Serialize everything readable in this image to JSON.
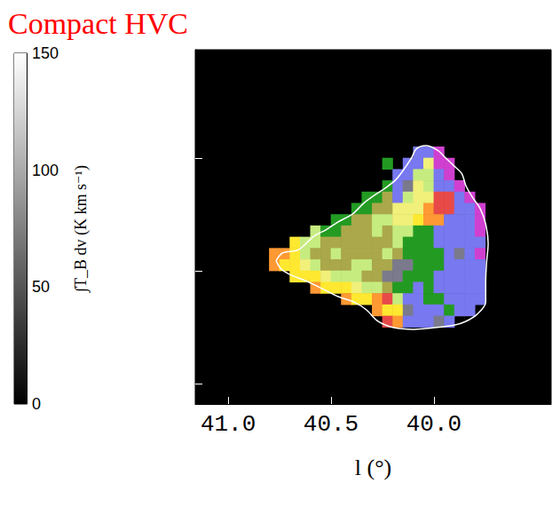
{
  "chart_data": {
    "type": "map",
    "title": "Compact HVC",
    "x_label": "l (°)",
    "xlim": [
      41.16,
      39.43
    ],
    "xticks": [
      {
        "value": 41.0,
        "label": "41.0"
      },
      {
        "value": 40.5,
        "label": "40.5"
      },
      {
        "value": 40.0,
        "label": "40.0"
      }
    ],
    "ylim": [
      -1.09,
      0.48
    ],
    "yticks": [
      -1.0,
      -0.5,
      0.0
    ],
    "tick_labels": "x",
    "palette": [
      "#239b23",
      "#c6ec80",
      "#aaa84a",
      "#ffe830",
      "#ff9933",
      "#e84a48",
      "#7878f0",
      "#d040d0",
      "#7a7a8c",
      "#f0f07a"
    ],
    "cell_l": [
      40.775,
      40.725,
      40.675,
      40.625,
      40.575,
      40.525,
      40.475,
      40.425,
      40.375,
      40.325,
      40.275,
      40.225,
      40.175,
      40.125,
      40.075,
      40.025,
      39.975,
      39.925,
      39.875,
      39.825,
      39.775,
      39.725
    ],
    "cell_b": [
      0.025,
      -0.025,
      -0.075,
      -0.125,
      -0.175,
      -0.225,
      -0.275,
      -0.325,
      -0.375,
      -0.425,
      -0.475,
      -0.525,
      -0.575,
      -0.625,
      -0.675,
      -0.725
    ],
    "cells": [
      [
        null,
        null,
        null,
        null,
        null,
        null,
        null,
        null,
        null,
        null,
        null,
        null,
        null,
        null,
        6,
        6,
        7,
        null,
        null,
        null,
        null,
        null
      ],
      [
        null,
        null,
        null,
        null,
        null,
        null,
        null,
        null,
        null,
        null,
        null,
        0,
        null,
        6,
        6,
        9,
        7,
        7,
        null,
        null,
        null,
        null
      ],
      [
        null,
        null,
        null,
        null,
        null,
        null,
        null,
        null,
        null,
        null,
        null,
        null,
        6,
        6,
        1,
        1,
        6,
        7,
        null,
        null,
        null,
        null
      ],
      [
        null,
        null,
        null,
        null,
        null,
        null,
        null,
        null,
        null,
        null,
        null,
        0,
        6,
        8,
        9,
        1,
        6,
        6,
        7,
        null,
        null,
        null
      ],
      [
        null,
        null,
        null,
        null,
        null,
        null,
        null,
        null,
        null,
        0,
        0,
        2,
        6,
        1,
        9,
        9,
        5,
        5,
        6,
        7,
        null,
        null
      ],
      [
        null,
        null,
        null,
        null,
        null,
        null,
        null,
        null,
        0,
        0,
        2,
        2,
        9,
        9,
        9,
        4,
        5,
        5,
        6,
        6,
        7,
        null
      ],
      [
        null,
        null,
        null,
        null,
        null,
        null,
        0,
        0,
        2,
        2,
        1,
        1,
        9,
        9,
        3,
        4,
        4,
        6,
        6,
        6,
        7,
        null
      ],
      [
        null,
        null,
        null,
        null,
        1,
        0,
        0,
        2,
        2,
        2,
        1,
        2,
        1,
        1,
        0,
        0,
        6,
        6,
        6,
        6,
        7,
        null
      ],
      [
        null,
        null,
        3,
        1,
        1,
        2,
        2,
        2,
        2,
        2,
        2,
        2,
        1,
        0,
        0,
        0,
        6,
        6,
        6,
        6,
        6,
        null
      ],
      [
        4,
        4,
        3,
        1,
        2,
        2,
        1,
        2,
        2,
        2,
        2,
        1,
        2,
        0,
        0,
        0,
        0,
        6,
        8,
        6,
        7,
        null
      ],
      [
        4,
        3,
        3,
        9,
        1,
        2,
        2,
        2,
        1,
        1,
        2,
        2,
        8,
        8,
        0,
        0,
        0,
        6,
        6,
        6,
        6,
        null
      ],
      [
        null,
        null,
        3,
        3,
        3,
        9,
        1,
        1,
        1,
        2,
        2,
        8,
        8,
        0,
        0,
        0,
        6,
        6,
        6,
        6,
        6,
        null
      ],
      [
        null,
        null,
        null,
        null,
        4,
        3,
        3,
        3,
        9,
        1,
        1,
        2,
        0,
        0,
        6,
        0,
        6,
        6,
        6,
        6,
        6,
        null
      ],
      [
        null,
        null,
        null,
        null,
        null,
        null,
        null,
        4,
        3,
        3,
        4,
        5,
        1,
        6,
        6,
        0,
        0,
        6,
        6,
        6,
        6,
        null
      ],
      [
        null,
        null,
        null,
        null,
        null,
        null,
        null,
        null,
        null,
        null,
        4,
        3,
        3,
        8,
        6,
        6,
        6,
        0,
        6,
        6,
        null,
        null
      ],
      [
        null,
        null,
        null,
        null,
        null,
        null,
        null,
        null,
        null,
        null,
        null,
        5,
        4,
        6,
        6,
        6,
        8,
        6,
        null,
        null,
        null,
        null
      ]
    ],
    "contour": [
      [
        40.767,
        -0.455
      ],
      [
        40.736,
        -0.421
      ],
      [
        40.659,
        -0.407
      ],
      [
        40.581,
        -0.345
      ],
      [
        40.523,
        -0.317
      ],
      [
        40.465,
        -0.283
      ],
      [
        40.395,
        -0.248
      ],
      [
        40.341,
        -0.2
      ],
      [
        40.291,
        -0.166
      ],
      [
        40.233,
        -0.131
      ],
      [
        40.186,
        -0.097
      ],
      [
        40.155,
        -0.062
      ],
      [
        40.109,
        0.0
      ],
      [
        40.085,
        0.041
      ],
      [
        40.039,
        0.055
      ],
      [
        39.981,
        0.034
      ],
      [
        39.942,
        0.0
      ],
      [
        39.903,
        -0.034
      ],
      [
        39.864,
        -0.069
      ],
      [
        39.845,
        -0.121
      ],
      [
        39.814,
        -0.172
      ],
      [
        39.775,
        -0.224
      ],
      [
        39.748,
        -0.293
      ],
      [
        39.736,
        -0.379
      ],
      [
        39.744,
        -0.466
      ],
      [
        39.748,
        -0.552
      ],
      [
        39.748,
        -0.638
      ],
      [
        39.787,
        -0.69
      ],
      [
        39.845,
        -0.724
      ],
      [
        39.903,
        -0.741
      ],
      [
        40.0,
        -0.752
      ],
      [
        40.097,
        -0.759
      ],
      [
        40.194,
        -0.752
      ],
      [
        40.271,
        -0.724
      ],
      [
        40.329,
        -0.672
      ],
      [
        40.388,
        -0.638
      ],
      [
        40.465,
        -0.614
      ],
      [
        40.543,
        -0.579
      ],
      [
        40.62,
        -0.545
      ],
      [
        40.698,
        -0.517
      ],
      [
        40.744,
        -0.49
      ],
      [
        40.767,
        -0.455
      ]
    ],
    "colorbar": {
      "label": "∫T_B dv (K km s⁻¹)",
      "lim": [
        0,
        150
      ],
      "ticks": [
        0,
        50,
        100,
        150
      ]
    }
  }
}
